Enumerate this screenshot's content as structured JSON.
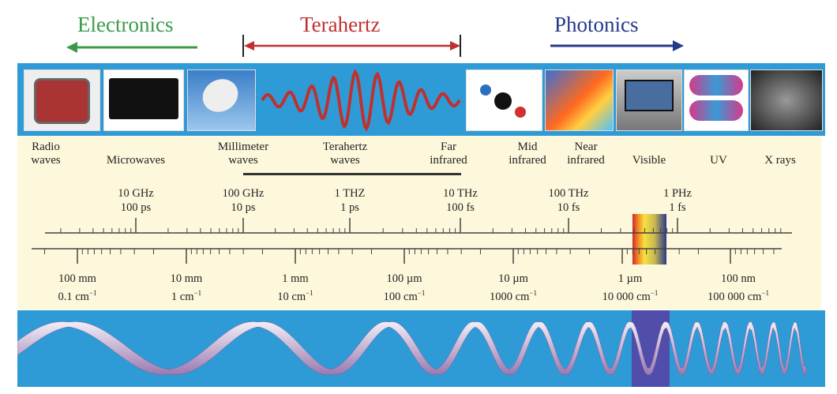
{
  "headers": {
    "electronics": "Electronics",
    "terahertz": "Terahertz",
    "photonics": "Photonics"
  },
  "colors": {
    "electronics": "#3a9a4a",
    "terahertz": "#c0302e",
    "photonics": "#25398a",
    "band": "#2f9bd6",
    "panel": "#fdf8dc"
  },
  "regions": [
    {
      "l1": "Radio",
      "l2": "waves"
    },
    {
      "l1": "",
      "l2": "Microwaves"
    },
    {
      "l1": "Millimeter",
      "l2": "waves"
    },
    {
      "l1": "Terahertz",
      "l2": "waves"
    },
    {
      "l1": "Far",
      "l2": "infrared"
    },
    {
      "l1": "Mid",
      "l2": "infrared"
    },
    {
      "l1": "Near",
      "l2": "infrared"
    },
    {
      "l1": "",
      "l2": "Visible"
    },
    {
      "l1": "",
      "l2": "UV"
    },
    {
      "l1": "",
      "l2": "X rays"
    }
  ],
  "freq_ticks": [
    {
      "f": "10 GHz",
      "t": "100 ps"
    },
    {
      "f": "100 GHz",
      "t": "10 ps"
    },
    {
      "f": "1 THZ",
      "t": "1 ps"
    },
    {
      "f": "10 THz",
      "t": "100 fs"
    },
    {
      "f": "100 THz",
      "t": "10 fs"
    },
    {
      "f": "1 PHz",
      "t": "1 fs"
    }
  ],
  "wave_ticks": [
    {
      "w": "100 mm",
      "k": "0.1 cm",
      "e": "−1"
    },
    {
      "w": "10 mm",
      "k": "1 cm",
      "e": "−1"
    },
    {
      "w": "1 mm",
      "k": "10 cm",
      "e": "−1"
    },
    {
      "w": "100 µm",
      "k": "100 cm",
      "e": "−1"
    },
    {
      "w": "10 µm",
      "k": "1000 cm",
      "e": "−1"
    },
    {
      "w": "1 µm",
      "k": "10 000 cm",
      "e": "−1"
    },
    {
      "w": "100 nm",
      "k": "100 000 cm",
      "e": "−1"
    }
  ],
  "images": [
    "radio",
    "microwave-oven",
    "satellite-dish",
    "terahertz-wave",
    "molecule",
    "thermal-image",
    "television",
    "uv-goggles",
    "x-ray-skeleton"
  ]
}
